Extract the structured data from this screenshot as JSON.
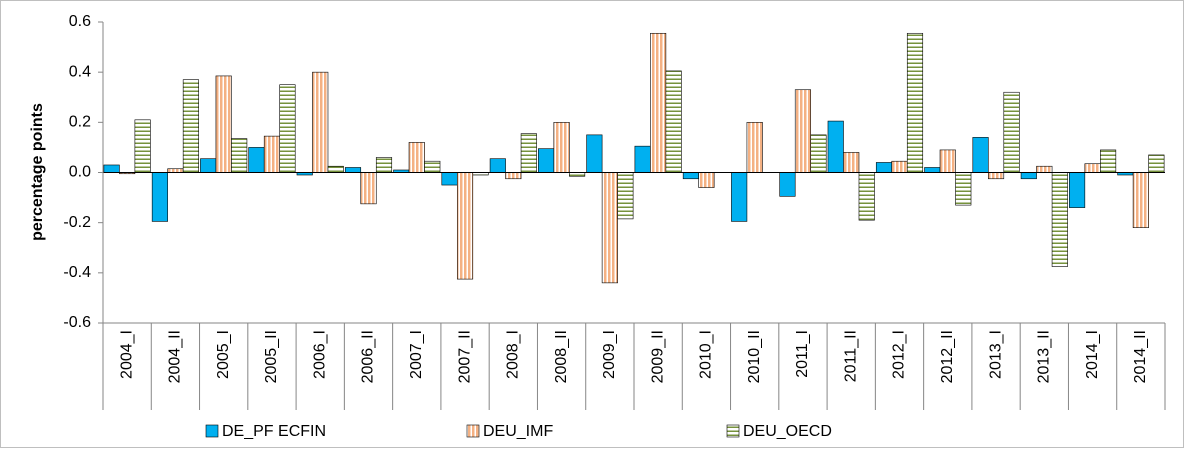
{
  "chart_data": {
    "type": "bar",
    "y_label": "percentage points",
    "categories": [
      "2004_I",
      "2004_II",
      "2005_I",
      "2005_II",
      "2006_I",
      "2006_II",
      "2007_I",
      "2007_II",
      "2008_I",
      "2008_II",
      "2009_I",
      "2009_II",
      "2010_I",
      "2010_II",
      "2011_I",
      "2011_II",
      "2012_I",
      "2012_II",
      "2013_I",
      "2013_II",
      "2014_I",
      "2014_II"
    ],
    "series": [
      {
        "name": "DE_PF ECFIN",
        "color": "#00b0f0",
        "pattern": "solid",
        "values": [
          0.03,
          -0.195,
          0.055,
          0.1,
          -0.01,
          0.02,
          0.01,
          -0.05,
          0.055,
          0.095,
          0.15,
          0.105,
          -0.025,
          -0.195,
          -0.095,
          0.205,
          0.04,
          0.02,
          0.14,
          -0.025,
          -0.14,
          -0.01
        ]
      },
      {
        "name": "DEU_IMF",
        "color": "#f4b183",
        "pattern": "vertical",
        "values": [
          -0.005,
          0.015,
          0.385,
          0.145,
          0.4,
          -0.125,
          0.12,
          -0.425,
          -0.025,
          0.2,
          -0.44,
          0.555,
          -0.06,
          0.2,
          0.33,
          0.08,
          0.045,
          0.09,
          -0.025,
          0.025,
          0.035,
          -0.22
        ]
      },
      {
        "name": "DEU_OECD",
        "color": "#76923c",
        "pattern": "horizontal",
        "values": [
          0.21,
          0.37,
          0.135,
          0.35,
          0.025,
          0.06,
          0.045,
          -0.01,
          0.155,
          -0.015,
          -0.185,
          0.405,
          0,
          0,
          0.15,
          -0.19,
          0.555,
          -0.13,
          0.32,
          -0.375,
          0.09,
          0.07
        ]
      }
    ],
    "ylim": [
      -0.6,
      0.6
    ],
    "yticks": [
      -0.6,
      -0.4,
      -0.2,
      {
        "value": 0,
        "label": "0.0"
      },
      0.2,
      0.4,
      0.6
    ],
    "grid": false,
    "legend": "bottom"
  }
}
